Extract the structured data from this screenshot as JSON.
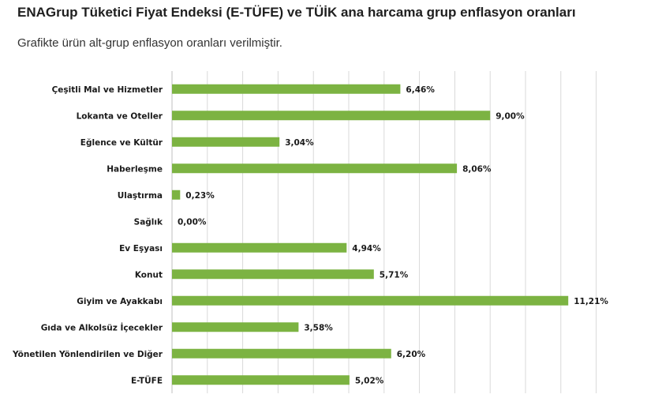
{
  "header": {
    "title": "ENAGrup Tüketici Fiyat Endeksi (E-TÜFE) ve TÜİK ana harcama grup enflasyon oranları",
    "subtitle": "Grafikte ürün alt-grup enflasyon oranları verilmiştir."
  },
  "colors": {
    "bar": "#7cb342",
    "grid": "#d9d9d9",
    "text": "#1a1a1a"
  },
  "chart_data": {
    "type": "bar",
    "orientation": "horizontal",
    "categories": [
      "Çeşitli Mal ve Hizmetler",
      "Lokanta ve Oteller",
      "Eğlence ve Kültür",
      "Haberleşme",
      "Ulaştırma",
      "Sağlık",
      "Ev Eşyası",
      "Konut",
      "Giyim ve Ayakkabı",
      "Gıda ve Alkolsüz İçecekler",
      "Yönetilen Yönlendirilen ve Diğer",
      "E-TÜFE"
    ],
    "values": [
      6.46,
      9.0,
      3.04,
      8.06,
      0.23,
      0.0,
      4.94,
      5.71,
      11.21,
      3.58,
      6.2,
      5.02
    ],
    "value_labels": [
      "6,46%",
      "9,00%",
      "3,04%",
      "8,06%",
      "0,23%",
      "0,00%",
      "4,94%",
      "5,71%",
      "11,21%",
      "3,58%",
      "6,20%",
      "5,02%"
    ],
    "xlim": [
      0,
      12
    ],
    "grid": true,
    "legend": "none"
  }
}
